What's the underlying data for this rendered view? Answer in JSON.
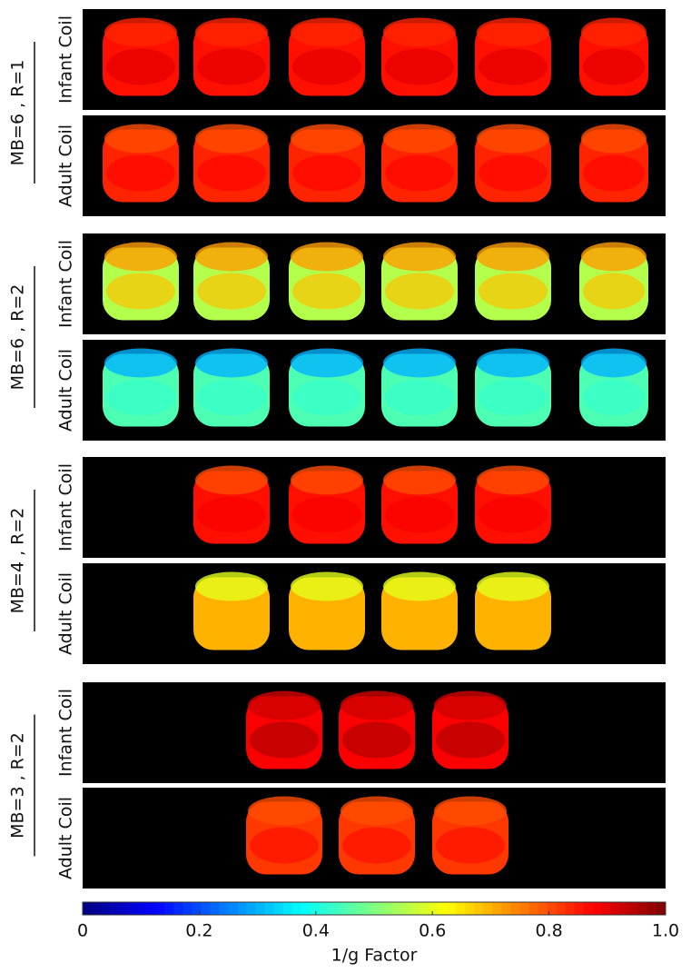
{
  "groups": [
    {
      "label": "MB=6 ,  R=1",
      "rows": [
        "Infant Coil",
        "Adult Coil"
      ]
    },
    {
      "label": "MB=6 ,  R=2",
      "rows": [
        "Infant Coil",
        "Adult Coil"
      ]
    },
    {
      "label": "MB=4 ,  R=2",
      "rows": [
        "Infant Coil",
        "Adult Coil"
      ]
    },
    {
      "label": "MB=3 ,  R=2",
      "rows": [
        "Infant Coil",
        "Adult Coil"
      ]
    }
  ],
  "colorbar": {
    "label": "1/g Factor",
    "lim": [
      0,
      1
    ],
    "ticks": [
      0,
      0.2,
      0.4,
      0.6,
      0.8,
      {
        "value": 1,
        "label": "1.0"
      }
    ]
  }
}
